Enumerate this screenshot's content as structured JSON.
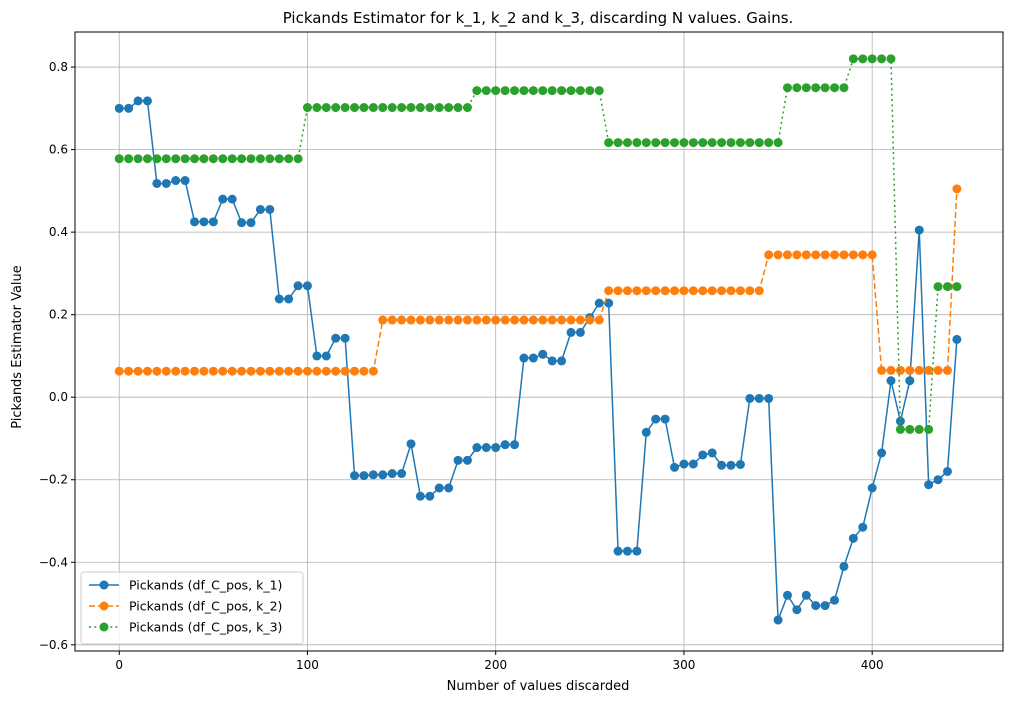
{
  "chart_data": {
    "type": "line",
    "title": "Pickands Estimator for k_1, k_2 and k_3, discarding N values. Gains.",
    "xlabel": "Number of values discarded",
    "ylabel": "Pickands Estimator Value",
    "xlim": [
      -23.5,
      469.5
    ],
    "ylim": [
      -0.615,
      0.885
    ],
    "xticks": [
      0,
      100,
      200,
      300,
      400
    ],
    "yticks": [
      -0.6,
      -0.4,
      -0.2,
      0.0,
      0.2,
      0.4,
      0.6,
      0.8
    ],
    "grid": true,
    "legend_position": "lower left",
    "x": [
      0,
      5,
      10,
      15,
      20,
      25,
      30,
      35,
      40,
      45,
      50,
      55,
      60,
      65,
      70,
      75,
      80,
      85,
      90,
      95,
      100,
      105,
      110,
      115,
      120,
      125,
      130,
      135,
      140,
      145,
      150,
      155,
      160,
      165,
      170,
      175,
      180,
      185,
      190,
      195,
      200,
      205,
      210,
      215,
      220,
      225,
      230,
      235,
      240,
      245,
      250,
      255,
      260,
      265,
      270,
      275,
      280,
      285,
      290,
      295,
      300,
      305,
      310,
      315,
      320,
      325,
      330,
      335,
      340,
      345,
      350,
      355,
      360,
      365,
      370,
      375,
      380,
      385,
      390,
      395,
      400,
      405,
      410,
      415,
      420,
      425,
      430,
      435,
      440,
      445
    ],
    "series": [
      {
        "name": "Pickands (df_C_pos, k_1)",
        "color": "#1f77b4",
        "linestyle": "solid",
        "values": [
          0.7,
          0.7,
          0.718,
          0.718,
          0.518,
          0.518,
          0.525,
          0.525,
          0.425,
          0.425,
          0.425,
          0.48,
          0.48,
          0.423,
          0.423,
          0.455,
          0.455,
          0.238,
          0.238,
          0.27,
          0.27,
          0.1,
          0.1,
          0.143,
          0.143,
          -0.19,
          -0.19,
          -0.188,
          -0.188,
          -0.185,
          -0.185,
          -0.113,
          -0.24,
          -0.24,
          -0.22,
          -0.22,
          -0.153,
          -0.153,
          -0.122,
          -0.122,
          -0.122,
          -0.115,
          -0.115,
          0.095,
          0.095,
          0.104,
          0.088,
          0.088,
          0.157,
          0.157,
          0.193,
          0.228,
          0.228,
          -0.373,
          -0.373,
          -0.373,
          -0.085,
          -0.053,
          -0.053,
          -0.17,
          -0.162,
          -0.162,
          -0.14,
          -0.135,
          -0.165,
          -0.165,
          -0.163,
          -0.003,
          -0.003,
          -0.003,
          -0.54,
          -0.48,
          -0.515,
          -0.48,
          -0.505,
          -0.505,
          -0.492,
          -0.41,
          -0.342,
          -0.315,
          -0.22,
          -0.135,
          0.04,
          -0.058,
          0.04,
          0.405,
          -0.212,
          -0.2,
          -0.18,
          0.14
        ]
      },
      {
        "name": "Pickands (df_C_pos, k_2)",
        "color": "#ff7f0e",
        "linestyle": "dashed",
        "values": [
          0.063,
          0.063,
          0.063,
          0.063,
          0.063,
          0.063,
          0.063,
          0.063,
          0.063,
          0.063,
          0.063,
          0.063,
          0.063,
          0.063,
          0.063,
          0.063,
          0.063,
          0.063,
          0.063,
          0.063,
          0.063,
          0.063,
          0.063,
          0.063,
          0.063,
          0.063,
          0.063,
          0.063,
          0.187,
          0.187,
          0.187,
          0.187,
          0.187,
          0.187,
          0.187,
          0.187,
          0.187,
          0.187,
          0.187,
          0.187,
          0.187,
          0.187,
          0.187,
          0.187,
          0.187,
          0.187,
          0.187,
          0.187,
          0.187,
          0.187,
          0.187,
          0.187,
          0.258,
          0.258,
          0.258,
          0.258,
          0.258,
          0.258,
          0.258,
          0.258,
          0.258,
          0.258,
          0.258,
          0.258,
          0.258,
          0.258,
          0.258,
          0.258,
          0.258,
          0.345,
          0.345,
          0.345,
          0.345,
          0.345,
          0.345,
          0.345,
          0.345,
          0.345,
          0.345,
          0.345,
          0.345,
          0.065,
          0.065,
          0.065,
          0.065,
          0.065,
          0.065,
          0.065,
          0.065,
          0.505
        ]
      },
      {
        "name": "Pickands (df_C_pos, k_3)",
        "color": "#2ca02c",
        "linestyle": "dotted",
        "values": [
          0.578,
          0.578,
          0.578,
          0.578,
          0.578,
          0.578,
          0.578,
          0.578,
          0.578,
          0.578,
          0.578,
          0.578,
          0.578,
          0.578,
          0.578,
          0.578,
          0.578,
          0.578,
          0.578,
          0.578,
          0.702,
          0.702,
          0.702,
          0.702,
          0.702,
          0.702,
          0.702,
          0.702,
          0.702,
          0.702,
          0.702,
          0.702,
          0.702,
          0.702,
          0.702,
          0.702,
          0.702,
          0.702,
          0.743,
          0.743,
          0.743,
          0.743,
          0.743,
          0.743,
          0.743,
          0.743,
          0.743,
          0.743,
          0.743,
          0.743,
          0.743,
          0.743,
          0.617,
          0.617,
          0.617,
          0.617,
          0.617,
          0.617,
          0.617,
          0.617,
          0.617,
          0.617,
          0.617,
          0.617,
          0.617,
          0.617,
          0.617,
          0.617,
          0.617,
          0.617,
          0.617,
          0.75,
          0.75,
          0.75,
          0.75,
          0.75,
          0.75,
          0.75,
          0.82,
          0.82,
          0.82,
          0.82,
          0.82,
          -0.078,
          -0.078,
          -0.078,
          -0.078,
          0.268,
          0.268,
          0.268
        ]
      }
    ]
  }
}
